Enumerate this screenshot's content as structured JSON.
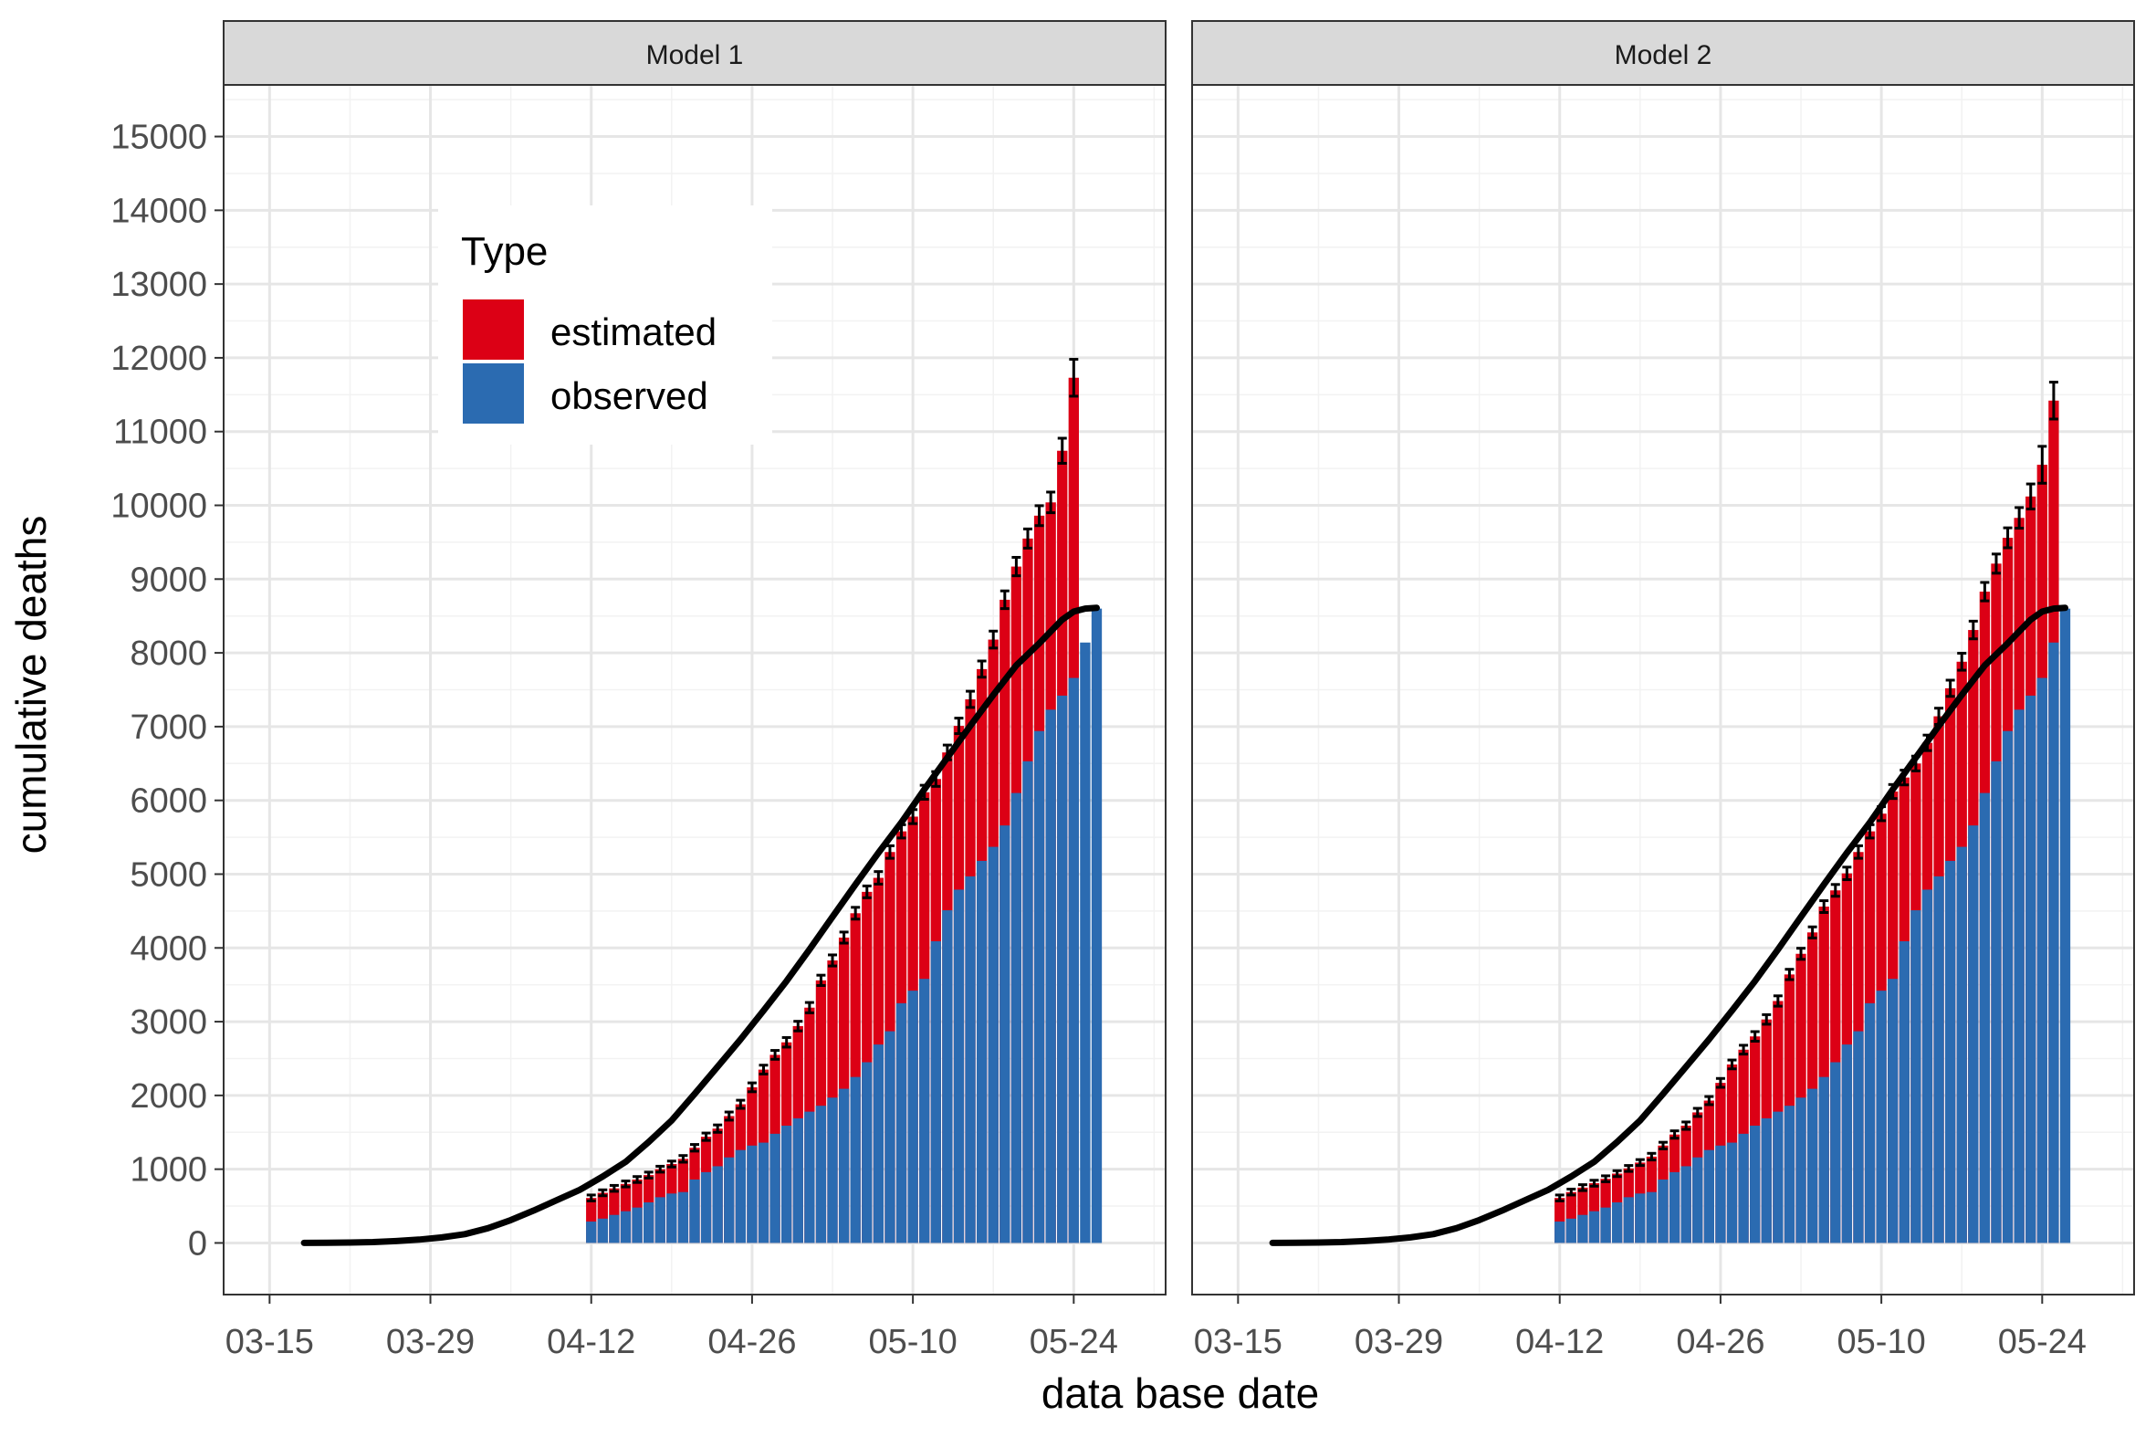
{
  "chart_data": {
    "type": "bar",
    "xlabel": "data base date",
    "ylabel": "cumulative deaths",
    "ylim": [
      -700,
      15700
    ],
    "y_ticks": [
      "0",
      "1000",
      "2000",
      "3000",
      "4000",
      "5000",
      "6000",
      "7000",
      "8000",
      "9000",
      "10000",
      "11000",
      "12000",
      "13000",
      "14000",
      "15000"
    ],
    "x_ticks": [
      "03-15",
      "03-29",
      "04-12",
      "04-26",
      "05-10",
      "05-24"
    ],
    "x_range": [
      "2020-03-11",
      "2020-06-01"
    ],
    "grid": true,
    "legend": {
      "title": "Type",
      "position": "top-left",
      "entries": [
        {
          "label": "estimated",
          "color": "#DC0015"
        },
        {
          "label": "observed",
          "color": "#2B6BB1"
        }
      ]
    },
    "colors": {
      "estimated": "#DC0015",
      "observed": "#2B6BB1",
      "line": "#000000",
      "error_bar": "#000000"
    },
    "x_bars": [
      "04-12",
      "04-13",
      "04-14",
      "04-15",
      "04-16",
      "04-17",
      "04-18",
      "04-19",
      "04-20",
      "04-21",
      "04-22",
      "04-23",
      "04-24",
      "04-25",
      "04-26",
      "04-27",
      "04-28",
      "04-29",
      "04-30",
      "05-01",
      "05-02",
      "05-03",
      "05-04",
      "05-05",
      "05-06",
      "05-07",
      "05-08",
      "05-09",
      "05-10",
      "05-11",
      "05-12",
      "05-13",
      "05-14",
      "05-15",
      "05-16",
      "05-17",
      "05-18",
      "05-19",
      "05-20",
      "05-21",
      "05-22",
      "05-23",
      "05-24",
      "05-25",
      "05-26"
    ],
    "line_x": [
      "03-18",
      "03-20",
      "03-22",
      "03-24",
      "03-26",
      "03-28",
      "03-30",
      "04-01",
      "04-03",
      "04-05",
      "04-07",
      "04-09",
      "04-11",
      "04-13",
      "04-15",
      "04-17",
      "04-19",
      "04-21",
      "04-23",
      "04-25",
      "04-27",
      "04-29",
      "05-01",
      "05-03",
      "05-05",
      "05-07",
      "05-09",
      "05-11",
      "05-13",
      "05-15",
      "05-17",
      "05-19",
      "05-21",
      "05-23",
      "05-24",
      "05-25",
      "05-26"
    ],
    "panels": [
      {
        "title": "Model 1",
        "observed": [
          290,
          330,
          380,
          430,
          480,
          550,
          620,
          670,
          690,
          860,
          960,
          1040,
          1160,
          1260,
          1320,
          1360,
          1480,
          1590,
          1690,
          1780,
          1860,
          1970,
          2090,
          2250,
          2450,
          2690,
          2870,
          3250,
          3420,
          3580,
          4090,
          4510,
          4790,
          4970,
          5180,
          5370,
          5660,
          6100,
          6530,
          6940,
          7230,
          7420,
          7660,
          8140,
          8600
        ],
        "estimated": [
          610,
          680,
          740,
          800,
          860,
          920,
          1000,
          1070,
          1140,
          1290,
          1440,
          1550,
          1720,
          1880,
          2110,
          2350,
          2550,
          2720,
          2940,
          3190,
          3560,
          3830,
          4140,
          4470,
          4760,
          4950,
          5300,
          5580,
          5780,
          6110,
          6290,
          6650,
          7010,
          7370,
          7780,
          8180,
          8720,
          9170,
          9550,
          9860,
          10040,
          10740,
          11730
        ],
        "estimated_err": [
          40,
          40,
          40,
          40,
          40,
          40,
          40,
          40,
          45,
          45,
          50,
          50,
          55,
          55,
          60,
          60,
          60,
          65,
          65,
          70,
          70,
          75,
          75,
          80,
          80,
          85,
          85,
          90,
          95,
          95,
          100,
          100,
          105,
          110,
          110,
          115,
          120,
          125,
          130,
          135,
          140,
          170,
          250
        ],
        "line": [
          0,
          2,
          5,
          12,
          25,
          45,
          75,
          120,
          200,
          310,
          440,
          580,
          720,
          900,
          1100,
          1370,
          1660,
          2020,
          2390,
          2760,
          3150,
          3550,
          3980,
          4420,
          4860,
          5290,
          5700,
          6150,
          6580,
          7010,
          7430,
          7830,
          8130,
          8450,
          8560,
          8600,
          8610
        ]
      },
      {
        "title": "Model 2",
        "observed": [
          290,
          330,
          380,
          430,
          480,
          550,
          620,
          670,
          690,
          860,
          960,
          1040,
          1160,
          1260,
          1320,
          1360,
          1480,
          1590,
          1690,
          1780,
          1860,
          1970,
          2090,
          2250,
          2450,
          2690,
          2870,
          3250,
          3420,
          3580,
          4090,
          4510,
          4790,
          4970,
          5180,
          5370,
          5660,
          6100,
          6530,
          6940,
          7230,
          7420,
          7660,
          8140,
          8600
        ],
        "estimated": [
          610,
          690,
          750,
          810,
          870,
          940,
          1010,
          1090,
          1170,
          1320,
          1470,
          1590,
          1770,
          1930,
          2170,
          2420,
          2620,
          2800,
          3030,
          3280,
          3640,
          3920,
          4210,
          4560,
          4780,
          5010,
          5300,
          5580,
          5820,
          6120,
          6310,
          6500,
          6780,
          7140,
          7520,
          7880,
          8310,
          8830,
          9210,
          9560,
          9830,
          10120,
          10550,
          11420
        ],
        "estimated_err": [
          40,
          40,
          40,
          40,
          40,
          40,
          40,
          40,
          45,
          45,
          50,
          50,
          55,
          55,
          60,
          60,
          60,
          65,
          65,
          70,
          70,
          75,
          75,
          80,
          80,
          85,
          85,
          90,
          95,
          95,
          100,
          100,
          105,
          110,
          110,
          115,
          120,
          125,
          130,
          135,
          140,
          170,
          250,
          250
        ],
        "line": [
          0,
          2,
          5,
          12,
          25,
          45,
          75,
          120,
          200,
          310,
          440,
          580,
          720,
          900,
          1100,
          1370,
          1660,
          2020,
          2390,
          2760,
          3150,
          3550,
          3980,
          4420,
          4860,
          5290,
          5700,
          6150,
          6580,
          7010,
          7430,
          7830,
          8130,
          8450,
          8560,
          8600,
          8610
        ]
      }
    ]
  }
}
